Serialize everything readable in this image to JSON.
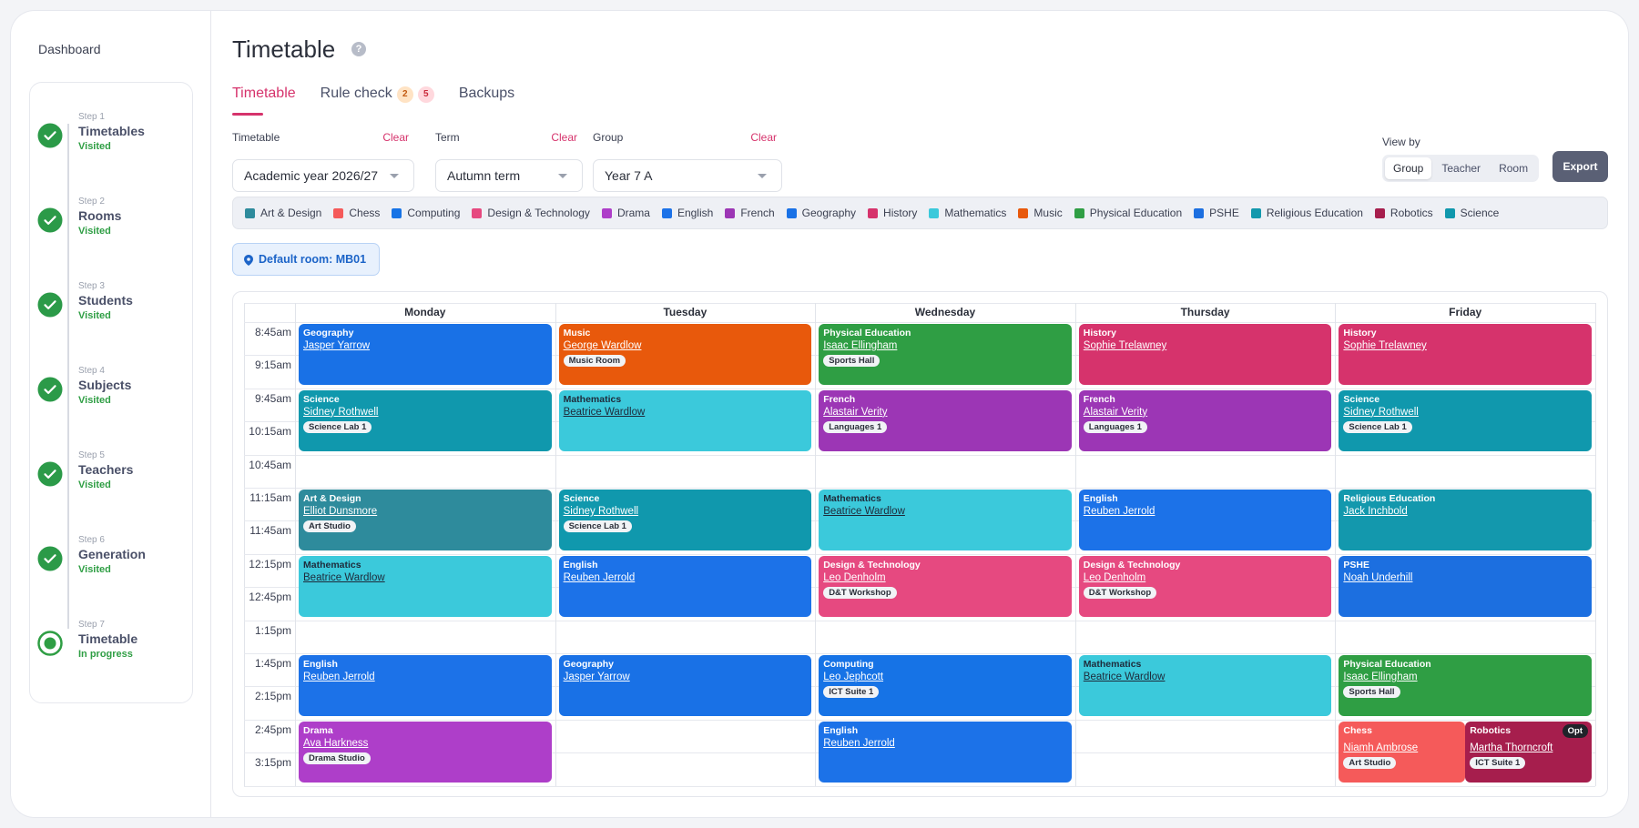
{
  "sidebar": {
    "dashboard": "Dashboard",
    "steps": [
      {
        "step": "Step 1",
        "title": "Timetables",
        "status": "Visited"
      },
      {
        "step": "Step 2",
        "title": "Rooms",
        "status": "Visited"
      },
      {
        "step": "Step 3",
        "title": "Students",
        "status": "Visited"
      },
      {
        "step": "Step 4",
        "title": "Subjects",
        "status": "Visited"
      },
      {
        "step": "Step 5",
        "title": "Teachers",
        "status": "Visited"
      },
      {
        "step": "Step 6",
        "title": "Generation",
        "status": "Visited"
      },
      {
        "step": "Step 7",
        "title": "Timetable",
        "status": "In progress"
      }
    ]
  },
  "header": {
    "title": "Timetable"
  },
  "tabs": [
    {
      "label": "Timetable"
    },
    {
      "label": "Rule check",
      "badges": [
        2,
        5
      ]
    },
    {
      "label": "Backups"
    }
  ],
  "filters": [
    {
      "label": "Timetable",
      "clear": "Clear",
      "value": "Academic year 2026/27"
    },
    {
      "label": "Term",
      "clear": "Clear",
      "value": "Autumn term"
    },
    {
      "label": "Group",
      "clear": "Clear",
      "value": "Year 7 A"
    }
  ],
  "view_by": {
    "label": "View by",
    "options": [
      "Group",
      "Teacher",
      "Room"
    ]
  },
  "export": "Export",
  "legend": [
    {
      "name": "Art & Design",
      "color": "#2e8b9c"
    },
    {
      "name": "Chess",
      "color": "#f55a5a"
    },
    {
      "name": "Computing",
      "color": "#1673e6"
    },
    {
      "name": "Design & Technology",
      "color": "#e64980"
    },
    {
      "name": "Drama",
      "color": "#ae3ec9"
    },
    {
      "name": "English",
      "color": "#1c72e8"
    },
    {
      "name": "French",
      "color": "#9c36b5"
    },
    {
      "name": "Geography",
      "color": "#1971e6"
    },
    {
      "name": "History",
      "color": "#d6336c"
    },
    {
      "name": "Mathematics",
      "color": "#3bc9db"
    },
    {
      "name": "Music",
      "color": "#e8590c"
    },
    {
      "name": "Physical Education",
      "color": "#2f9e44"
    },
    {
      "name": "PSHE",
      "color": "#1c6fe0"
    },
    {
      "name": "Religious Education",
      "color": "#1398ad"
    },
    {
      "name": "Robotics",
      "color": "#a61e4d"
    },
    {
      "name": "Science",
      "color": "#1098ad"
    }
  ],
  "default_room": "Default room: MB01",
  "times": [
    "8:45am",
    "9:15am",
    "9:45am",
    "10:15am",
    "10:45am",
    "11:15am",
    "11:45am",
    "12:15pm",
    "12:45pm",
    "1:15pm",
    "1:45pm",
    "2:15pm",
    "2:45pm",
    "3:15pm"
  ],
  "days": [
    {
      "name": "Monday",
      "lessons": [
        {
          "start": "8:45am",
          "subject": "Geography",
          "teacher": "Jasper Yarrow"
        },
        {
          "start": "9:45am",
          "subject": "Science",
          "teacher": "Sidney Rothwell",
          "room": "Science Lab 1"
        },
        {
          "start": "11:15am",
          "subject": "Art & Design",
          "teacher": "Elliot Dunsmore",
          "room": "Art Studio"
        },
        {
          "start": "12:15pm",
          "subject": "Mathematics",
          "teacher": "Beatrice Wardlow"
        },
        {
          "start": "1:45pm",
          "subject": "English",
          "teacher": "Reuben Jerrold"
        },
        {
          "start": "2:45pm",
          "subject": "Drama",
          "teacher": "Ava Harkness",
          "room": "Drama Studio"
        }
      ]
    },
    {
      "name": "Tuesday",
      "lessons": [
        {
          "start": "8:45am",
          "subject": "Music",
          "teacher": "George Wardlow",
          "room": "Music Room"
        },
        {
          "start": "9:45am",
          "subject": "Mathematics",
          "teacher": "Beatrice Wardlow"
        },
        {
          "start": "11:15am",
          "subject": "Science",
          "teacher": "Sidney Rothwell",
          "room": "Science Lab 1"
        },
        {
          "start": "12:15pm",
          "subject": "English",
          "teacher": "Reuben Jerrold"
        },
        {
          "start": "1:45pm",
          "subject": "Geography",
          "teacher": "Jasper Yarrow"
        }
      ]
    },
    {
      "name": "Wednesday",
      "lessons": [
        {
          "start": "8:45am",
          "subject": "Physical Education",
          "teacher": "Isaac Ellingham",
          "room": "Sports Hall"
        },
        {
          "start": "9:45am",
          "subject": "French",
          "teacher": "Alastair Verity",
          "room": "Languages 1"
        },
        {
          "start": "11:15am",
          "subject": "Mathematics",
          "teacher": "Beatrice Wardlow"
        },
        {
          "start": "12:15pm",
          "subject": "Design & Technology",
          "teacher": "Leo Denholm",
          "room": "D&T Workshop"
        },
        {
          "start": "1:45pm",
          "subject": "Computing",
          "teacher": "Leo Jephcott",
          "room": "ICT Suite 1"
        },
        {
          "start": "2:45pm",
          "subject": "English",
          "teacher": "Reuben Jerrold"
        }
      ]
    },
    {
      "name": "Thursday",
      "lessons": [
        {
          "start": "8:45am",
          "subject": "History",
          "teacher": "Sophie Trelawney"
        },
        {
          "start": "9:45am",
          "subject": "French",
          "teacher": "Alastair Verity",
          "room": "Languages 1"
        },
        {
          "start": "11:15am",
          "subject": "English",
          "teacher": "Reuben Jerrold"
        },
        {
          "start": "12:15pm",
          "subject": "Design & Technology",
          "teacher": "Leo Denholm",
          "room": "D&T Workshop"
        },
        {
          "start": "1:45pm",
          "subject": "Mathematics",
          "teacher": "Beatrice Wardlow"
        }
      ]
    },
    {
      "name": "Friday",
      "lessons": [
        {
          "start": "8:45am",
          "subject": "History",
          "teacher": "Sophie Trelawney"
        },
        {
          "start": "9:45am",
          "subject": "Science",
          "teacher": "Sidney Rothwell",
          "room": "Science Lab 1"
        },
        {
          "start": "11:15am",
          "subject": "Religious Education",
          "teacher": "Jack Inchbold"
        },
        {
          "start": "12:15pm",
          "subject": "PSHE",
          "teacher": "Noah Underhill"
        },
        {
          "start": "1:45pm",
          "subject": "Physical Education",
          "teacher": "Isaac Ellingham",
          "room": "Sports Hall"
        },
        {
          "start": "2:45pm",
          "subject": "Chess",
          "teacher": "Niamh Ambrose",
          "room": "Art Studio"
        },
        {
          "start": "2:45pm",
          "subject": "Robotics",
          "teacher": "Martha Thorncroft",
          "room": "ICT Suite 1",
          "badge": "Opt"
        }
      ]
    }
  ]
}
